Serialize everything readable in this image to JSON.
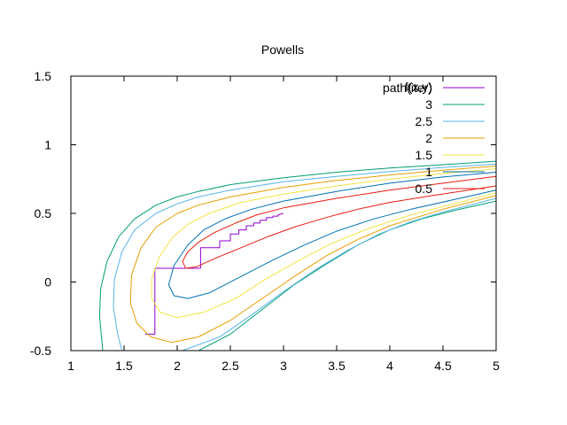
{
  "chart_data": {
    "type": "line",
    "title": "Powells",
    "xlabel": "",
    "ylabel": "",
    "xlim": [
      1,
      5
    ],
    "ylim": [
      -0.5,
      1.5
    ],
    "xticks": [
      "1",
      "1.5",
      "2",
      "2.5",
      "3",
      "3.5",
      "4",
      "4.5",
      "5"
    ],
    "yticks": [
      "-0.5",
      "0",
      "0.5",
      "1",
      "1.5"
    ],
    "grid": false,
    "legend_placement": "top-right",
    "legend_header": "f(x,y)",
    "series": [
      {
        "name": "path(iter)",
        "color": "#9400d3",
        "points": [
          [
            1.7,
            -0.38
          ],
          [
            1.79,
            -0.38
          ],
          [
            1.79,
            0.1
          ],
          [
            2.22,
            0.1
          ],
          [
            2.22,
            0.25
          ],
          [
            2.4,
            0.25
          ],
          [
            2.4,
            0.3
          ],
          [
            2.5,
            0.3
          ],
          [
            2.5,
            0.35
          ],
          [
            2.58,
            0.35
          ],
          [
            2.58,
            0.38
          ],
          [
            2.65,
            0.38
          ],
          [
            2.65,
            0.41
          ],
          [
            2.72,
            0.41
          ],
          [
            2.72,
            0.43
          ],
          [
            2.78,
            0.43
          ],
          [
            2.78,
            0.45
          ],
          [
            2.84,
            0.45
          ],
          [
            2.84,
            0.47
          ],
          [
            2.9,
            0.47
          ],
          [
            2.9,
            0.48
          ],
          [
            2.95,
            0.48
          ],
          [
            2.95,
            0.49
          ],
          [
            3.0,
            0.5
          ]
        ]
      },
      {
        "name": "3",
        "color": "#009e73",
        "points": [
          [
            5,
            0.88
          ],
          [
            4.5,
            0.855
          ],
          [
            4.0,
            0.83
          ],
          [
            3.5,
            0.8
          ],
          [
            3.0,
            0.76
          ],
          [
            2.5,
            0.71
          ],
          [
            2.2,
            0.66
          ],
          [
            2.0,
            0.62
          ],
          [
            1.8,
            0.56
          ],
          [
            1.6,
            0.46
          ],
          [
            1.45,
            0.33
          ],
          [
            1.34,
            0.15
          ],
          [
            1.28,
            -0.05
          ],
          [
            1.27,
            -0.25
          ],
          [
            1.3,
            -0.5
          ]
        ]
      },
      {
        "name": "3",
        "color": "#009e73",
        "points": [
          [
            1.3,
            -0.5
          ],
          [
            2.2,
            -0.5
          ],
          [
            2.5,
            -0.38
          ],
          [
            2.8,
            -0.2
          ],
          [
            3.1,
            -0.02
          ],
          [
            3.4,
            0.13
          ],
          [
            3.7,
            0.27
          ],
          [
            4.0,
            0.38
          ],
          [
            4.3,
            0.46
          ],
          [
            4.6,
            0.52
          ],
          [
            5,
            0.59
          ]
        ]
      },
      {
        "name": "2.5",
        "color": "#56b4e9",
        "points": [
          [
            5,
            0.86
          ],
          [
            4.5,
            0.835
          ],
          [
            4.0,
            0.805
          ],
          [
            3.5,
            0.77
          ],
          [
            3.0,
            0.73
          ],
          [
            2.5,
            0.67
          ],
          [
            2.2,
            0.62
          ],
          [
            2.0,
            0.57
          ],
          [
            1.8,
            0.5
          ],
          [
            1.6,
            0.38
          ],
          [
            1.48,
            0.22
          ],
          [
            1.41,
            0.02
          ],
          [
            1.4,
            -0.18
          ],
          [
            1.44,
            -0.38
          ],
          [
            1.48,
            -0.5
          ]
        ]
      },
      {
        "name": "2.5",
        "color": "#56b4e9",
        "points": [
          [
            1.48,
            -0.5
          ],
          [
            2.05,
            -0.5
          ],
          [
            2.4,
            -0.4
          ],
          [
            2.7,
            -0.24
          ],
          [
            3.0,
            -0.07
          ],
          [
            3.3,
            0.09
          ],
          [
            3.6,
            0.23
          ],
          [
            3.9,
            0.35
          ],
          [
            4.2,
            0.44
          ],
          [
            4.5,
            0.51
          ],
          [
            5,
            0.61
          ]
        ]
      },
      {
        "name": "2",
        "color": "#e69f00",
        "points": [
          [
            5,
            0.845
          ],
          [
            4.5,
            0.815
          ],
          [
            4.0,
            0.78
          ],
          [
            3.5,
            0.74
          ],
          [
            3.0,
            0.69
          ],
          [
            2.5,
            0.62
          ],
          [
            2.2,
            0.56
          ],
          [
            2.0,
            0.5
          ],
          [
            1.8,
            0.4
          ],
          [
            1.66,
            0.25
          ],
          [
            1.57,
            0.05
          ],
          [
            1.56,
            -0.15
          ],
          [
            1.62,
            -0.3
          ],
          [
            1.75,
            -0.4
          ],
          [
            1.95,
            -0.44
          ],
          [
            2.2,
            -0.4
          ],
          [
            2.5,
            -0.28
          ],
          [
            2.8,
            -0.12
          ],
          [
            3.1,
            0.04
          ],
          [
            3.4,
            0.19
          ],
          [
            3.7,
            0.31
          ],
          [
            4.0,
            0.41
          ],
          [
            4.5,
            0.53
          ],
          [
            5,
            0.63
          ]
        ]
      },
      {
        "name": "1.5",
        "color": "#f0e442",
        "points": [
          [
            5,
            0.825
          ],
          [
            4.5,
            0.79
          ],
          [
            4.0,
            0.75
          ],
          [
            3.5,
            0.7
          ],
          [
            3.0,
            0.64
          ],
          [
            2.6,
            0.58
          ],
          [
            2.3,
            0.5
          ],
          [
            2.1,
            0.42
          ],
          [
            1.95,
            0.32
          ],
          [
            1.83,
            0.18
          ],
          [
            1.76,
            0.02
          ],
          [
            1.76,
            -0.12
          ],
          [
            1.84,
            -0.22
          ],
          [
            2.0,
            -0.26
          ],
          [
            2.25,
            -0.22
          ],
          [
            2.55,
            -0.12
          ],
          [
            2.85,
            0.03
          ],
          [
            3.15,
            0.16
          ],
          [
            3.45,
            0.28
          ],
          [
            3.8,
            0.39
          ],
          [
            4.2,
            0.49
          ],
          [
            4.6,
            0.57
          ],
          [
            5,
            0.65
          ]
        ]
      },
      {
        "name": "1",
        "color": "#0072b2",
        "points": [
          [
            5,
            0.8
          ],
          [
            4.5,
            0.765
          ],
          [
            4.0,
            0.72
          ],
          [
            3.5,
            0.66
          ],
          [
            3.0,
            0.59
          ],
          [
            2.7,
            0.53
          ],
          [
            2.45,
            0.46
          ],
          [
            2.25,
            0.38
          ],
          [
            2.1,
            0.27
          ],
          [
            1.97,
            0.12
          ],
          [
            1.92,
            -0.02
          ],
          [
            1.97,
            -0.1
          ],
          [
            2.1,
            -0.12
          ],
          [
            2.3,
            -0.08
          ],
          [
            2.6,
            0.04
          ],
          [
            2.9,
            0.16
          ],
          [
            3.2,
            0.27
          ],
          [
            3.5,
            0.37
          ],
          [
            3.85,
            0.46
          ],
          [
            4.2,
            0.53
          ],
          [
            4.6,
            0.6
          ],
          [
            5,
            0.67
          ]
        ]
      },
      {
        "name": "0.5",
        "color": "#e51e10",
        "points": [
          [
            5,
            0.77
          ],
          [
            4.5,
            0.72
          ],
          [
            4.0,
            0.67
          ],
          [
            3.5,
            0.61
          ],
          [
            3.0,
            0.54
          ],
          [
            2.75,
            0.49
          ],
          [
            2.55,
            0.43
          ],
          [
            2.35,
            0.36
          ],
          [
            2.2,
            0.29
          ],
          [
            2.1,
            0.22
          ],
          [
            2.05,
            0.15
          ],
          [
            2.08,
            0.1
          ],
          [
            2.18,
            0.11
          ],
          [
            2.35,
            0.17
          ],
          [
            2.6,
            0.25
          ],
          [
            2.85,
            0.33
          ],
          [
            3.1,
            0.4
          ],
          [
            3.4,
            0.47
          ],
          [
            3.7,
            0.53
          ],
          [
            4.0,
            0.58
          ],
          [
            4.4,
            0.63
          ],
          [
            5,
            0.7
          ]
        ]
      }
    ]
  }
}
